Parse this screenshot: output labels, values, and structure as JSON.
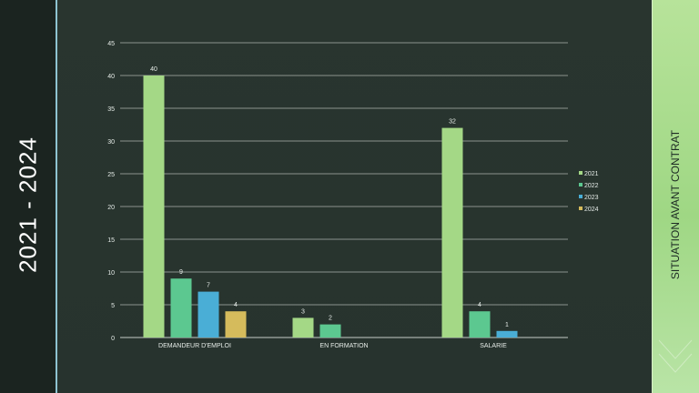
{
  "slide": {
    "left_title": "2021 - 2024",
    "right_title": "SITUATION  AVANT CONTRAT"
  },
  "colors": {
    "background": "#27332e",
    "left_band": "#1b2420",
    "right_band": "#a6da8c",
    "gridline": "#d8ddd9",
    "text": "#e6ece8"
  },
  "chart_data": {
    "type": "bar",
    "categories": [
      "DEMANDEUR D'EMPLOI",
      "EN FORMATION",
      "SALARIE"
    ],
    "series": [
      {
        "name": "2021",
        "color": "#a4d886",
        "values": [
          40,
          3,
          32
        ]
      },
      {
        "name": "2022",
        "color": "#5cc890",
        "values": [
          9,
          2,
          4
        ]
      },
      {
        "name": "2023",
        "color": "#4aaed6",
        "values": [
          7,
          null,
          1
        ]
      },
      {
        "name": "2024",
        "color": "#d5bb5c",
        "values": [
          4,
          null,
          null
        ]
      }
    ],
    "ylim": [
      0,
      45
    ],
    "yticks": [
      0,
      5,
      10,
      15,
      20,
      25,
      30,
      35,
      40,
      45
    ],
    "data_labels": true,
    "grid": true,
    "legend_position": "right"
  }
}
